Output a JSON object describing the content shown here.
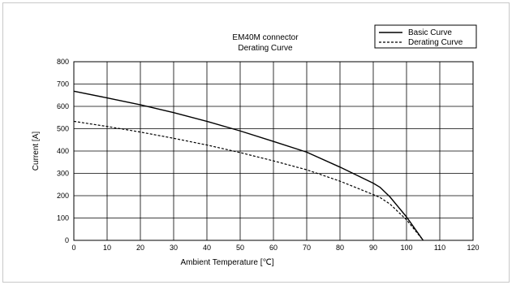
{
  "chart_data": {
    "type": "line",
    "title_lines": [
      "EM40M connector",
      "Derating Curve"
    ],
    "xlabel": "Ambient Temperature [℃]",
    "ylabel": "Current [A]",
    "xlim": [
      0,
      120
    ],
    "ylim": [
      0,
      800
    ],
    "x_ticks": [
      0,
      10,
      20,
      30,
      40,
      50,
      60,
      70,
      80,
      90,
      100,
      110,
      120
    ],
    "y_ticks": [
      0,
      100,
      200,
      300,
      400,
      500,
      600,
      700,
      800
    ],
    "grid": true,
    "legend_position": "top-right",
    "series": [
      {
        "name": "Basic Curve",
        "style": "solid",
        "color": "#000000",
        "x": [
          0,
          10,
          20,
          30,
          40,
          50,
          60,
          70,
          80,
          90,
          92,
          95,
          100,
          105
        ],
        "y": [
          668,
          638,
          607,
          572,
          533,
          490,
          443,
          395,
          328,
          256,
          238,
          195,
          105,
          0
        ]
      },
      {
        "name": "Derating Curve",
        "style": "dashed",
        "color": "#000000",
        "x": [
          0,
          10,
          20,
          30,
          40,
          50,
          60,
          70,
          80,
          90,
          92,
          95,
          100,
          105
        ],
        "y": [
          533,
          510,
          485,
          457,
          427,
          393,
          356,
          316,
          265,
          205,
          192,
          163,
          92,
          0
        ]
      }
    ]
  }
}
